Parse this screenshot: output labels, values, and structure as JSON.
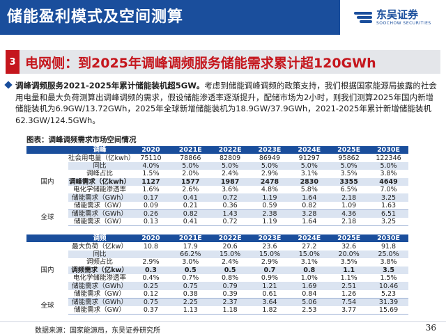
{
  "header": {
    "title": "储能盈利模式及空间测算",
    "logo_cn": "东吴证券",
    "logo_en": "SOOCHOW SECURITIES"
  },
  "section": {
    "number": "3",
    "title": "电网侧：到2025年调峰调频服务储能需求累计超120GWh"
  },
  "paragraph": {
    "bold_lead": "调峰调频服务2021-2025年累计储能装机超5GW。",
    "text": "考虑到储能调峰调频的政策支持，我们根据国家能源局披露的社会用电量和最大负荷测算出调峰调频的需求，假设储能渗透率逐渐提升，配储市场为2小时，则我们测算2025年国内新增储能装机为6.9GW/13.72GWh，2025年全球新增储能装机为18.9GW/37.9GWh，2021-2025年累计新增储能装机62.3GW/124.5GWh。"
  },
  "caption": "图表：调峰调频需求市场空间情况",
  "table1": {
    "header": {
      "label": "调峰",
      "cols": [
        "2020",
        "2021E",
        "2022E",
        "2023E",
        "2024E",
        "2025E",
        "2030E"
      ]
    },
    "domestic_region": "国内",
    "global_region": "全球",
    "rows": [
      {
        "label": "社会用电量（亿kwh）",
        "vals": [
          "75110",
          "78866",
          "82809",
          "86949",
          "91297",
          "95862",
          "122346"
        ]
      },
      {
        "label": "同比",
        "vals": [
          "4.0%",
          "5.0%",
          "5.0%",
          "5.0%",
          "5.0%",
          "5.0%",
          "5.0%"
        ]
      },
      {
        "label": "调峰占比",
        "vals": [
          "1.5%",
          "2.0%",
          "2.4%",
          "2.9%",
          "3.1%",
          "3.5%",
          "3.8%"
        ]
      },
      {
        "label": "调峰需求（亿kwh）",
        "vals": [
          "1127",
          "1577",
          "1987",
          "2478",
          "2830",
          "3355",
          "4649"
        ]
      },
      {
        "label": "电化学储能渗透率",
        "vals": [
          "1.6%",
          "2.6%",
          "3.6%",
          "4.8%",
          "5.8%",
          "6.5%",
          "7.0%"
        ]
      },
      {
        "label": "储能需求（GWh）",
        "vals": [
          "0.17",
          "0.41",
          "0.72",
          "1.19",
          "1.64",
          "2.18",
          "3.25"
        ]
      },
      {
        "label": "储能需求（GW）",
        "vals": [
          "0.09",
          "0.21",
          "0.36",
          "0.59",
          "0.82",
          "1.09",
          "1.63"
        ]
      },
      {
        "label": "储能需求（GWh）",
        "vals": [
          "0.26",
          "0.82",
          "1.43",
          "2.38",
          "3.28",
          "4.36",
          "6.51"
        ]
      },
      {
        "label": "储能需求（GW）",
        "vals": [
          "0.13",
          "0.41",
          "0.72",
          "1.19",
          "1.64",
          "2.18",
          "3.25"
        ]
      }
    ]
  },
  "table2": {
    "header": {
      "label": "调频",
      "cols": [
        "2020",
        "2021E",
        "2022E",
        "2023E",
        "2024E",
        "2025E",
        "2030E"
      ]
    },
    "domestic_region": "国内",
    "global_region": "全球",
    "rows": [
      {
        "label": "最大负荷（亿kw）",
        "vals": [
          "10.8",
          "17.9",
          "20.6",
          "23.6",
          "27.2",
          "32.6",
          "91.8"
        ]
      },
      {
        "label": "同比",
        "vals": [
          "",
          "66.2%",
          "15.0%",
          "15.0%",
          "15.0%",
          "20.0%",
          "25.0%"
        ]
      },
      {
        "label": "调频占比",
        "vals": [
          "2.9%",
          "3.0%",
          "2.4%",
          "2.9%",
          "3.1%",
          "3.5%",
          "3.8%"
        ]
      },
      {
        "label": "调频需求（亿kw）",
        "vals": [
          "0.3",
          "0.5",
          "0.5",
          "0.7",
          "0.8",
          "1.1",
          "3.5"
        ]
      },
      {
        "label": "电化学储能渗透率",
        "vals": [
          "0.4%",
          "0.7%",
          "0.8%",
          "0.9%",
          "1.0%",
          "1.1%",
          "1.5%"
        ]
      },
      {
        "label": "储能需求（GWh）",
        "vals": [
          "0.25",
          "0.75",
          "0.79",
          "1.21",
          "1.69",
          "2.51",
          "10.46"
        ]
      },
      {
        "label": "储能需求（GW）",
        "vals": [
          "0.12",
          "0.38",
          "0.39",
          "0.61",
          "0.84",
          "1.26",
          "5.23"
        ]
      },
      {
        "label": "储能需求（GWh）",
        "vals": [
          "0.75",
          "2.25",
          "2.37",
          "3.64",
          "5.06",
          "7.54",
          "31.39"
        ]
      },
      {
        "label": "储能需求（GW）",
        "vals": [
          "0.37",
          "1.13",
          "1.18",
          "1.82",
          "2.53",
          "3.77",
          "15.69"
        ]
      }
    ]
  },
  "footer": {
    "source": "数据来源：国家能源局，东吴证券研究所",
    "page": "36"
  },
  "colors": {
    "brand_blue": "#1a4e9c",
    "accent_red": "#c5161d",
    "shade": "#dbe4f1"
  }
}
